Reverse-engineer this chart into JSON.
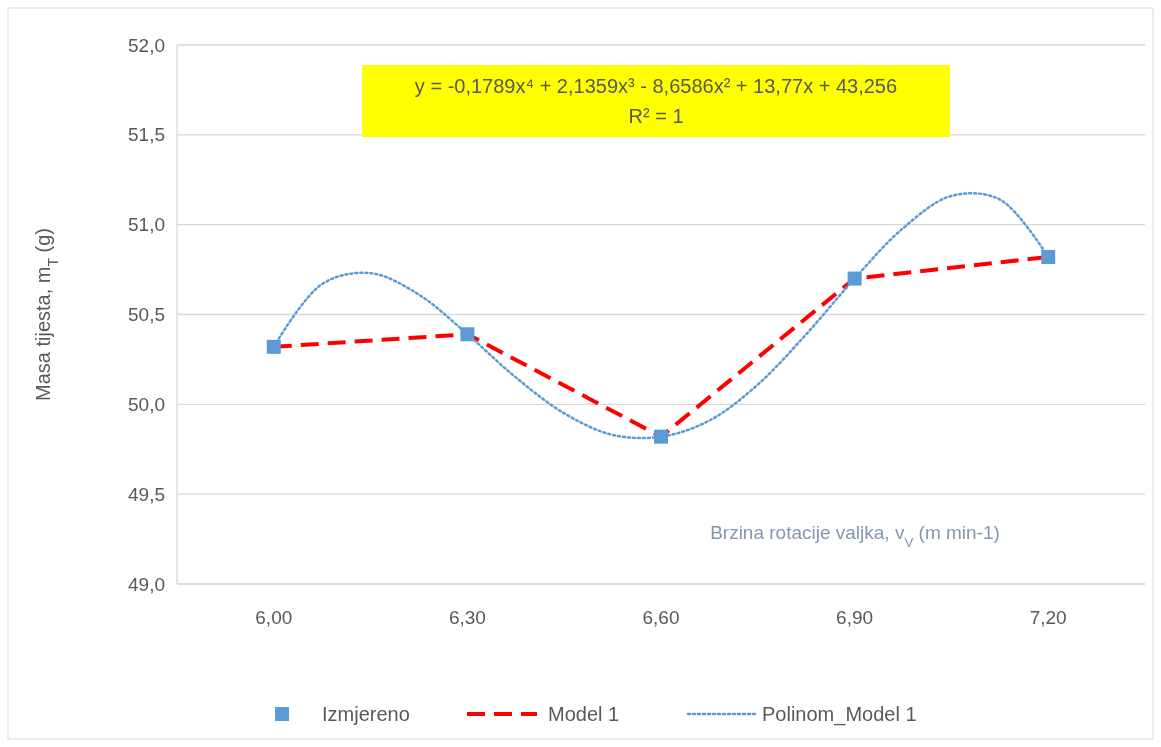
{
  "chart_data": {
    "type": "line",
    "xlabel": "Brzina rotacije valjka, v$_{V}$ (m min-1)",
    "ylabel": "Masa tijesta, m$_{T}$ (g)",
    "xlim": [
      5.85,
      7.35
    ],
    "xticks": [
      {
        "value": 6,
        "label": "6,00"
      },
      {
        "value": 6.3,
        "label": "6,30"
      },
      {
        "value": 6.6,
        "label": "6,60"
      },
      {
        "value": 6.9,
        "label": "6,90"
      },
      {
        "value": 7.2,
        "label": "7,20"
      }
    ],
    "ylim": [
      49,
      52
    ],
    "yticks": [
      {
        "value": 49,
        "label": "49,0"
      },
      {
        "value": 49.5,
        "label": "49,5"
      },
      {
        "value": 50,
        "label": "50,0"
      },
      {
        "value": 50.5,
        "label": "50,5"
      },
      {
        "value": 51,
        "label": "51,0"
      },
      {
        "value": 51.5,
        "label": "51,5"
      },
      {
        "value": 52,
        "label": "52,0"
      }
    ],
    "grid": "y",
    "legend": "bottom",
    "annotations": [
      "y = -0,1789x⁴ + 2,1359x³ - 8,6586x² + 13,77x + 43,256",
      "R² = 1"
    ],
    "series": [
      {
        "name": "Izmjereno",
        "type": "scatter",
        "marker": "square",
        "color": "#5b9bd5",
        "x": [
          6,
          6.3,
          6.6,
          6.9,
          7.2
        ],
        "values": [
          50.32,
          50.39,
          49.82,
          50.7,
          50.82
        ]
      },
      {
        "name": "Model 1",
        "line_style": "dashed",
        "marker": "none",
        "color": "#ff0000",
        "x": [
          6,
          6.3,
          6.6,
          6.9,
          7.2
        ],
        "values": [
          50.32,
          50.39,
          49.82,
          50.7,
          50.82
        ]
      },
      {
        "name": "Polinom_Model 1",
        "line_style": "dotted",
        "marker": "none",
        "color": "#5b9bd5",
        "x": [
          6,
          6.075,
          6.15,
          6.225,
          6.3,
          6.375,
          6.45,
          6.525,
          6.6,
          6.675,
          6.75,
          6.825,
          6.9,
          6.975,
          7.05,
          7.125,
          7.2
        ],
        "values": [
          50.32,
          50.67,
          50.73,
          50.61,
          50.39,
          50.15,
          49.95,
          49.83,
          49.82,
          49.91,
          50.11,
          50.39,
          50.7,
          50.98,
          51.16,
          51.14,
          50.82
        ]
      }
    ]
  }
}
